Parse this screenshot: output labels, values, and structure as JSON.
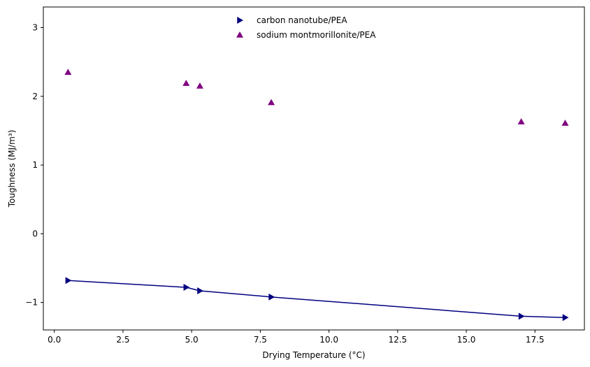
{
  "chart_data": {
    "type": "scatter",
    "title": "",
    "xlabel": "Drying Temperature (°C)",
    "ylabel": "Toughness (MJ/m³)",
    "xlim": [
      -0.4,
      19.3
    ],
    "ylim": [
      -1.4,
      3.3
    ],
    "x_ticks": [
      0.0,
      2.5,
      5.0,
      7.5,
      10.0,
      12.5,
      15.0,
      17.5
    ],
    "x_tick_labels": [
      "0.0",
      "2.5",
      "5.0",
      "7.5",
      "10.0",
      "12.5",
      "15.0",
      "17.5"
    ],
    "y_ticks": [
      -1,
      0,
      1,
      2,
      3
    ],
    "y_tick_labels": [
      "−1",
      "0",
      "1",
      "2",
      "3"
    ],
    "grid": false,
    "legend_position": "upper center",
    "series": [
      {
        "name": "carbon nanotube/PEA",
        "marker": "triangle-right",
        "line": true,
        "color": "#000080",
        "x": [
          0.5,
          4.8,
          5.3,
          7.9,
          17.0,
          18.6
        ],
        "y": [
          -0.68,
          -0.78,
          -0.83,
          -0.92,
          -1.2,
          -1.22
        ]
      },
      {
        "name": "sodium montmorillonite/PEA",
        "marker": "triangle-up",
        "line": false,
        "color": "#800080",
        "x": [
          0.5,
          4.8,
          5.3,
          7.9,
          17.0,
          18.6
        ],
        "y": [
          2.35,
          2.19,
          2.15,
          1.91,
          1.63,
          1.61
        ]
      }
    ]
  }
}
